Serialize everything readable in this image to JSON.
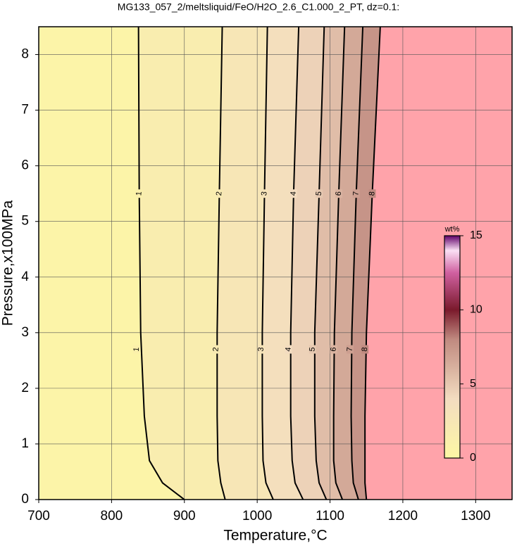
{
  "chart_data": {
    "type": "contour",
    "title": "MG133_057_2/meltsliquid/FeO/H2O_2.6_C1.000_2_PT, dz=0.1:",
    "x_label": "Temperature,°C",
    "y_label": "Pressure,x100MPa",
    "xlim": [
      700,
      1350
    ],
    "xticks": [
      700,
      800,
      900,
      1000,
      1100,
      1200,
      1300
    ],
    "ylim": [
      0,
      8.5
    ],
    "yticks": [
      0,
      1,
      2,
      3,
      4,
      5,
      6,
      7,
      8
    ],
    "grid": true,
    "pressures": [
      0,
      0.3,
      0.7,
      1.5,
      3,
      5.5,
      8.5
    ],
    "series": [
      {
        "name": "1",
        "values": [
          900,
          870,
          852,
          845,
          840,
          838,
          837
        ]
      },
      {
        "name": "2",
        "values": [
          956,
          950,
          946,
          945,
          945,
          948,
          952
        ]
      },
      {
        "name": "3",
        "values": [
          1022,
          1012,
          1008,
          1007,
          1007,
          1010,
          1014
        ]
      },
      {
        "name": "4",
        "values": [
          1063,
          1052,
          1048,
          1046,
          1046,
          1050,
          1057
        ]
      },
      {
        "name": "5",
        "values": [
          1095,
          1085,
          1081,
          1079,
          1079,
          1085,
          1092
        ]
      },
      {
        "name": "6",
        "values": [
          1117,
          1108,
          1105,
          1105,
          1106,
          1112,
          1120
        ]
      },
      {
        "name": "7",
        "values": [
          1139,
          1132,
          1130,
          1129,
          1130,
          1136,
          1145
        ]
      },
      {
        "name": "8",
        "values": [
          1150,
          1148,
          1148,
          1148,
          1150,
          1158,
          1169
        ]
      }
    ],
    "no_data_color": "#ffa3aa",
    "colorbar": {
      "label": "wt%",
      "lim": [
        0,
        15
      ],
      "ticks": [
        0,
        5,
        10,
        15
      ],
      "stops": [
        [
          0,
          "#fdf7a4"
        ],
        [
          4,
          "#f3dcc0"
        ],
        [
          8,
          "#c08a80"
        ],
        [
          10,
          "#7a1a2c"
        ],
        [
          12.5,
          "#d060a0"
        ],
        [
          14,
          "#fbe0f4"
        ],
        [
          15,
          "#60006a"
        ]
      ]
    }
  }
}
